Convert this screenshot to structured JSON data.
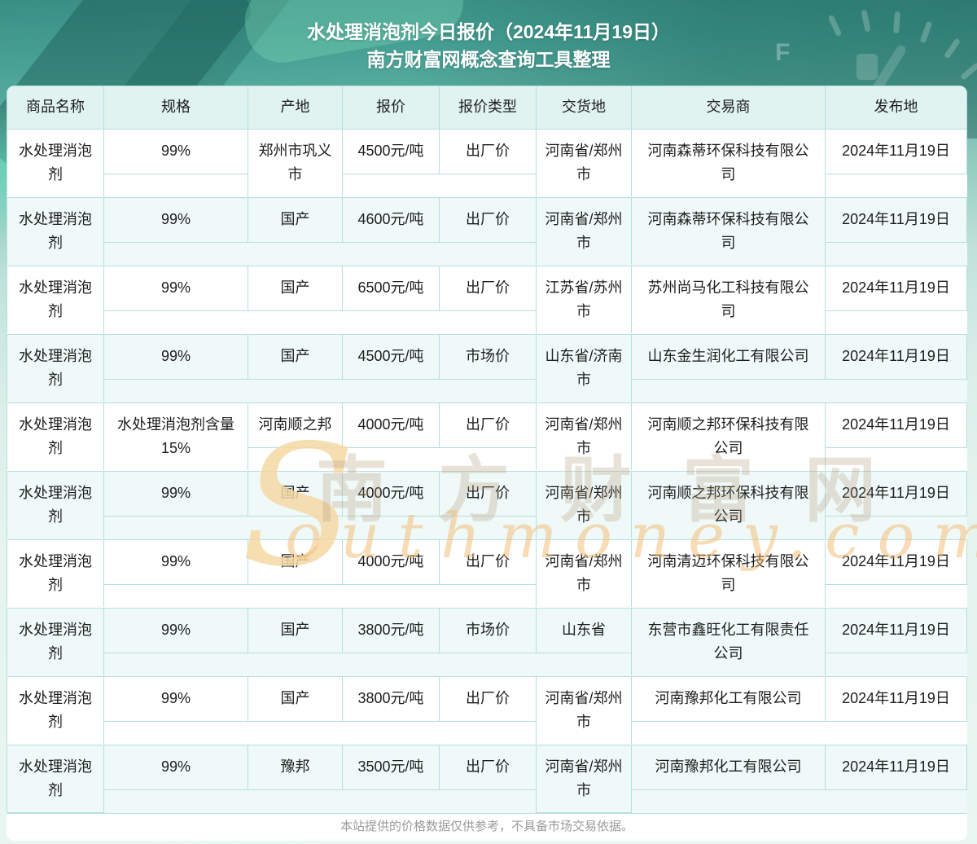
{
  "page": {
    "title_line1": "水处理消泡剂今日报价（2024年11月19日）",
    "title_line2": "南方财富网概念查询工具整理",
    "disclaimer": "本站提供的价格数据仅供参考，不具备市场交易依据。"
  },
  "watermark": {
    "big_letter": "S",
    "cjk_text": "南方财富网",
    "script_text": "outhmoney.com"
  },
  "gauge": {
    "full_label": "F"
  },
  "colors": {
    "table_border": "#b5dfdd",
    "row_tint": "#eff9f8",
    "header_bg": "#e0f3f0",
    "page_teal": "#3a8e85",
    "watermark_orange": "#f2ba6e"
  },
  "table": {
    "columns": [
      "商品名称",
      "规格",
      "产地",
      "报价",
      "报价类型",
      "交货地",
      "交易商",
      "发布地"
    ],
    "rows": [
      [
        "水处理消泡\n剂",
        "99%",
        "郑州市巩义\n市",
        "4500元/吨",
        "出厂价",
        "河南省/郑州\n市",
        "河南森蒂环保科技有限公\n司",
        "2024年11月19日"
      ],
      [
        "水处理消泡\n剂",
        "99%",
        "国产",
        "4600元/吨",
        "出厂价",
        "河南省/郑州\n市",
        "河南森蒂环保科技有限公\n司",
        "2024年11月19日"
      ],
      [
        "水处理消泡\n剂",
        "99%",
        "国产",
        "6500元/吨",
        "出厂价",
        "江苏省/苏州\n市",
        "苏州尚马化工科技有限公\n司",
        "2024年11月19日"
      ],
      [
        "水处理消泡\n剂",
        "99%",
        "国产",
        "4500元/吨",
        "市场价",
        "山东省/济南\n市",
        "山东金生润化工有限公司",
        "2024年11月19日"
      ],
      [
        "水处理消泡\n剂",
        "水处理消泡剂含量\n15%",
        "河南顺之邦",
        "4000元/吨",
        "出厂价",
        "河南省/郑州\n市",
        "河南顺之邦环保科技有限\n公司",
        "2024年11月19日"
      ],
      [
        "水处理消泡\n剂",
        "99%",
        "国产",
        "4000元/吨",
        "出厂价",
        "河南省/郑州\n市",
        "河南顺之邦环保科技有限\n公司",
        "2024年11月19日"
      ],
      [
        "水处理消泡\n剂",
        "99%",
        "国产",
        "4000元/吨",
        "出厂价",
        "河南省/郑州\n市",
        "河南清迈环保科技有限公\n司",
        "2024年11月19日"
      ],
      [
        "水处理消泡\n剂",
        "99%",
        "国产",
        "3800元/吨",
        "市场价",
        "山东省",
        "东营市鑫旺化工有限责任\n公司",
        "2024年11月19日"
      ],
      [
        "水处理消泡\n剂",
        "99%",
        "国产",
        "3800元/吨",
        "出厂价",
        "河南省/郑州\n市",
        "河南豫邦化工有限公司",
        "2024年11月19日"
      ],
      [
        "水处理消泡\n剂",
        "99%",
        "豫邦",
        "3500元/吨",
        "出厂价",
        "河南省/郑州\n市",
        "河南豫邦化工有限公司",
        "2024年11月19日"
      ]
    ]
  }
}
